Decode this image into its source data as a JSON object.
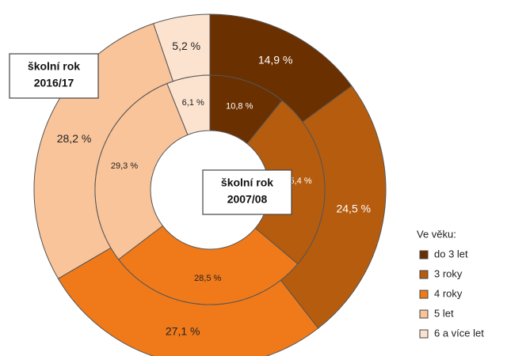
{
  "chart_data": {
    "type": "donut",
    "categories": [
      "do 3 let",
      "3 roky",
      "4 roky",
      "5 let",
      "6 a více let"
    ],
    "colors": [
      "#6b3000",
      "#b65c0e",
      "#f07a1a",
      "#f9c49a",
      "#fce3cf"
    ],
    "legend_title": "Ve věku:",
    "legend": "right",
    "series": [
      {
        "name": "školní rok 2016/17",
        "ring": "outer",
        "values": [
          14.9,
          24.5,
          27.1,
          28.2,
          5.2
        ],
        "value_labels": [
          "14,9 %",
          "24,5 %",
          "27,1 %",
          "28,2 %",
          "5,2 %"
        ]
      },
      {
        "name": "školní rok 2007/08",
        "ring": "inner",
        "values": [
          10.8,
          25.4,
          28.5,
          29.3,
          6.1
        ],
        "value_labels": [
          "10,8 %",
          "25,4 %",
          "28,5 %",
          "29,3 %",
          "6,1 %"
        ]
      }
    ],
    "annotations": [
      [
        "školní rok",
        "2016/17"
      ],
      [
        "školní rok",
        "2007/08"
      ]
    ]
  }
}
